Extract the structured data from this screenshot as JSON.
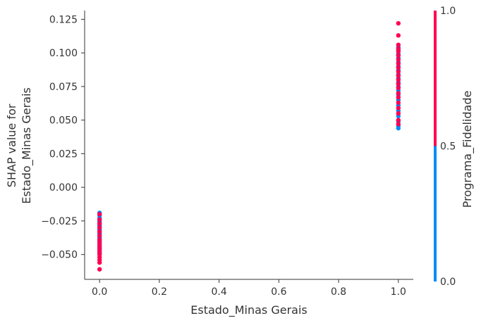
{
  "chart_data": {
    "type": "scatter",
    "title": "",
    "xlabel": "Estado_Minas Gerais",
    "ylabel_lines": [
      "SHAP value for",
      "Estado_Minas Gerais"
    ],
    "xlim": [
      -0.05,
      1.05
    ],
    "ylim": [
      -0.0685,
      0.1315
    ],
    "x_ticks": [
      0.0,
      0.2,
      0.4,
      0.6,
      0.8,
      1.0
    ],
    "x_tick_labels": [
      "0.0",
      "0.2",
      "0.4",
      "0.6",
      "0.8",
      "1.0"
    ],
    "y_ticks": [
      -0.05,
      -0.025,
      0.0,
      0.025,
      0.05,
      0.075,
      0.1,
      0.125
    ],
    "y_tick_labels": [
      "−0.050",
      "−0.025",
      "0.000",
      "0.025",
      "0.050",
      "0.075",
      "0.100",
      "0.125"
    ],
    "grid": false,
    "colorbar": {
      "label": "Programa_Fidelidade",
      "min": 0.0,
      "max": 1.0,
      "tick_values": [
        0.0,
        0.5,
        1.0
      ],
      "tick_labels": [
        "0.0",
        "0.5",
        "1.0"
      ],
      "low_color": "#008bfb",
      "high_color": "#ff0052"
    },
    "series": [
      {
        "color_value": 0,
        "color": "#008bfb",
        "points": [
          [
            0,
            -0.019
          ],
          [
            0,
            -0.021
          ],
          [
            0,
            -0.023
          ],
          [
            0,
            -0.025
          ],
          [
            0,
            -0.026
          ],
          [
            0,
            -0.028
          ],
          [
            0,
            -0.029
          ],
          [
            0,
            -0.031
          ],
          [
            0,
            -0.032
          ],
          [
            0,
            -0.034
          ],
          [
            0,
            -0.035
          ],
          [
            0,
            -0.037
          ],
          [
            0,
            -0.038
          ],
          [
            0,
            -0.04
          ],
          [
            0,
            -0.042
          ],
          [
            0,
            -0.044
          ],
          [
            0,
            -0.046
          ],
          [
            0,
            -0.049
          ],
          [
            1,
            0.044
          ],
          [
            1,
            0.046
          ],
          [
            1,
            0.049
          ],
          [
            1,
            0.053
          ],
          [
            1,
            0.057
          ],
          [
            1,
            0.061
          ],
          [
            1,
            0.065
          ],
          [
            1,
            0.069
          ],
          [
            1,
            0.072
          ],
          [
            1,
            0.075
          ],
          [
            1,
            0.078
          ],
          [
            1,
            0.081
          ],
          [
            1,
            0.084
          ],
          [
            1,
            0.087
          ],
          [
            1,
            0.09
          ],
          [
            1,
            0.093
          ],
          [
            1,
            0.096
          ],
          [
            1,
            0.099
          ],
          [
            1,
            0.102
          ],
          [
            1,
            0.104
          ]
        ]
      },
      {
        "color_value": 1,
        "color": "#ff0052",
        "points": [
          [
            0,
            -0.02
          ],
          [
            0,
            -0.024
          ],
          [
            0,
            -0.027
          ],
          [
            0,
            -0.03
          ],
          [
            0,
            -0.033
          ],
          [
            0,
            -0.036
          ],
          [
            0,
            -0.039
          ],
          [
            0,
            -0.041
          ],
          [
            0,
            -0.043
          ],
          [
            0,
            -0.045
          ],
          [
            0,
            -0.047
          ],
          [
            0,
            -0.048
          ],
          [
            0,
            -0.05
          ],
          [
            0,
            -0.052
          ],
          [
            0,
            -0.054
          ],
          [
            0,
            -0.056
          ],
          [
            0,
            -0.061
          ],
          [
            1,
            0.047
          ],
          [
            1,
            0.05
          ],
          [
            1,
            0.055
          ],
          [
            1,
            0.059
          ],
          [
            1,
            0.063
          ],
          [
            1,
            0.067
          ],
          [
            1,
            0.07
          ],
          [
            1,
            0.074
          ],
          [
            1,
            0.077
          ],
          [
            1,
            0.08
          ],
          [
            1,
            0.083
          ],
          [
            1,
            0.086
          ],
          [
            1,
            0.089
          ],
          [
            1,
            0.092
          ],
          [
            1,
            0.095
          ],
          [
            1,
            0.098
          ],
          [
            1,
            0.101
          ],
          [
            1,
            0.103
          ],
          [
            1,
            0.106
          ],
          [
            1,
            0.113
          ],
          [
            1,
            0.122
          ]
        ]
      }
    ]
  }
}
